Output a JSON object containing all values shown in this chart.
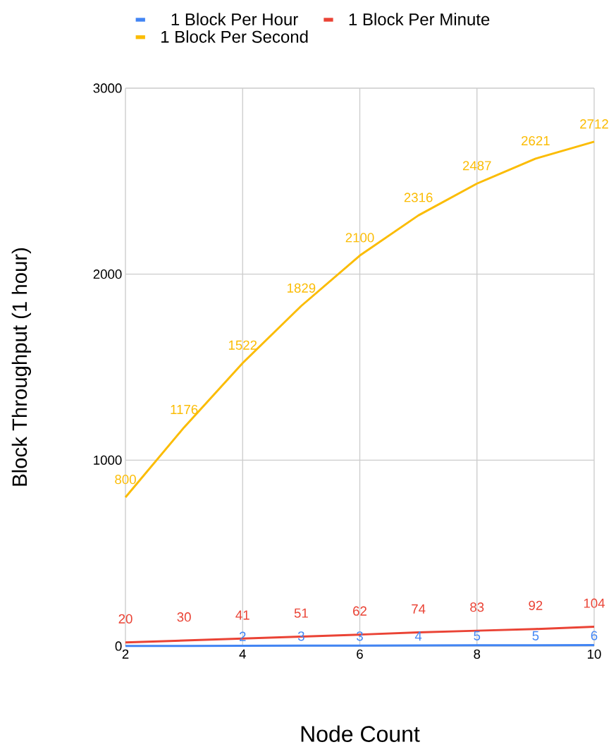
{
  "chart_data": {
    "type": "line",
    "xlabel": "Node Count",
    "ylabel": "Block Throughput (1 hour)",
    "x": [
      2,
      3,
      4,
      5,
      6,
      7,
      8,
      9,
      10
    ],
    "series": [
      {
        "name": "1 Block Per Hour",
        "color": "#4285f4",
        "values": [
          1,
          1,
          2,
          3,
          3,
          4,
          5,
          5,
          6
        ],
        "value_labels": [
          null,
          null,
          "2",
          "3",
          "3",
          "4",
          "5",
          "5",
          "6"
        ]
      },
      {
        "name": "1 Block Per Minute",
        "color": "#ea4335",
        "values": [
          20,
          30,
          41,
          51,
          62,
          74,
          83,
          92,
          104
        ]
      },
      {
        "name": "1 Block Per Second",
        "color": "#fbbc04",
        "values": [
          800,
          1176,
          1522,
          1829,
          2100,
          2316,
          2487,
          2621,
          2712
        ]
      }
    ],
    "xlim": [
      2,
      10
    ],
    "xticks": [
      2,
      4,
      6,
      8,
      10
    ],
    "ylim": [
      0,
      3000
    ],
    "yticks": [
      0,
      1000,
      2000,
      3000
    ],
    "grid": true,
    "legend": "top",
    "marker": "none",
    "line_style": "solid",
    "data_labels": true
  }
}
